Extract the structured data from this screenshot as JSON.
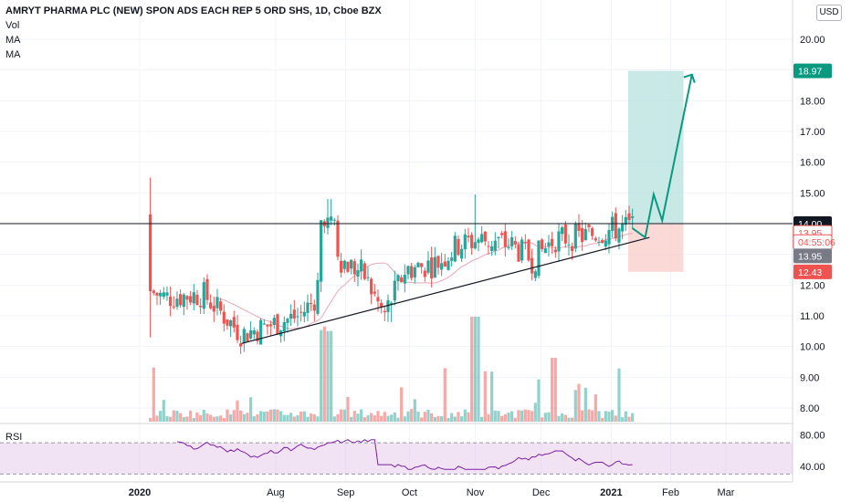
{
  "legend": {
    "title": "AMRYT PHARMA PLC (NEW) SPON ADS EACH REP 5 ORD SHS, 1D, Cboe BZX",
    "lines": [
      "Vol",
      "MA",
      "MA"
    ]
  },
  "currency_button": "USD",
  "rsi_label": "RSI",
  "colors": {
    "up": "#26a69a",
    "down": "#ef5350",
    "target_zone": "#b2dfdb",
    "stop_zone": "#f8c9c6",
    "rsi_band": "#e1bee7",
    "rsi_line": "#7b1fa2",
    "projection": "#089981",
    "price_tag": "#131722"
  },
  "chart_data": {
    "type": "candlestick",
    "price_axis_ticks": [
      "20.00",
      "19.00",
      "18.00",
      "17.00",
      "16.00",
      "15.00",
      "14.00",
      "13.00",
      "12.00",
      "11.00",
      "10.00",
      "9.00",
      "8.00"
    ],
    "ylim": [
      7.6,
      21.2
    ],
    "time_axis_ticks": [
      "2020",
      "Aug",
      "Sep",
      "Oct",
      "Nov",
      "Dec",
      "2021",
      "Feb",
      "Mar"
    ],
    "time_tick_days": [
      0,
      64,
      97,
      127,
      158,
      189,
      222,
      250,
      276
    ],
    "rsi_axis_ticks": [
      "80.00",
      "40.00"
    ],
    "rsi_lim": [
      20,
      90
    ],
    "horizontal_line": 14.0,
    "trendline": [
      {
        "day": 48,
        "price": 10.1
      },
      {
        "day": 240,
        "price": 13.55
      }
    ],
    "target_zone": {
      "from_day": 230,
      "to_day": 256,
      "low": 14.0,
      "high": 18.97
    },
    "stop_zone": {
      "from_day": 230,
      "to_day": 256,
      "low": 12.43,
      "high": 14.0
    },
    "projection_path": [
      {
        "day": 232,
        "price": 13.85
      },
      {
        "day": 238,
        "price": 13.55
      },
      {
        "day": 242,
        "price": 14.95
      },
      {
        "day": 246,
        "price": 14.1
      },
      {
        "day": 260,
        "price": 18.85
      }
    ],
    "price_labels": [
      {
        "text": "18.97",
        "price": 18.97,
        "style": "green"
      },
      {
        "text": "14.00",
        "price": 14.0,
        "style": "dark"
      },
      {
        "text": "13.95",
        "price": 13.7,
        "style": "red-outline"
      },
      {
        "text": "04:55:06",
        "price": 13.4,
        "style": "red-outline"
      },
      {
        "text": "13.95",
        "price": 12.95,
        "style": "grey"
      },
      {
        "text": "12.43",
        "price": 12.43,
        "style": "red"
      }
    ],
    "candles_start": {
      "day": 5,
      "open": 14.3,
      "high": 15.5,
      "low": 10.3,
      "close": 11.8
    },
    "candle_count": 145,
    "series": [
      {
        "name": "Vol",
        "kind": "volume"
      },
      {
        "name": "MA",
        "kind": "moving-average"
      },
      {
        "name": "RSI",
        "kind": "oscillator"
      }
    ]
  }
}
